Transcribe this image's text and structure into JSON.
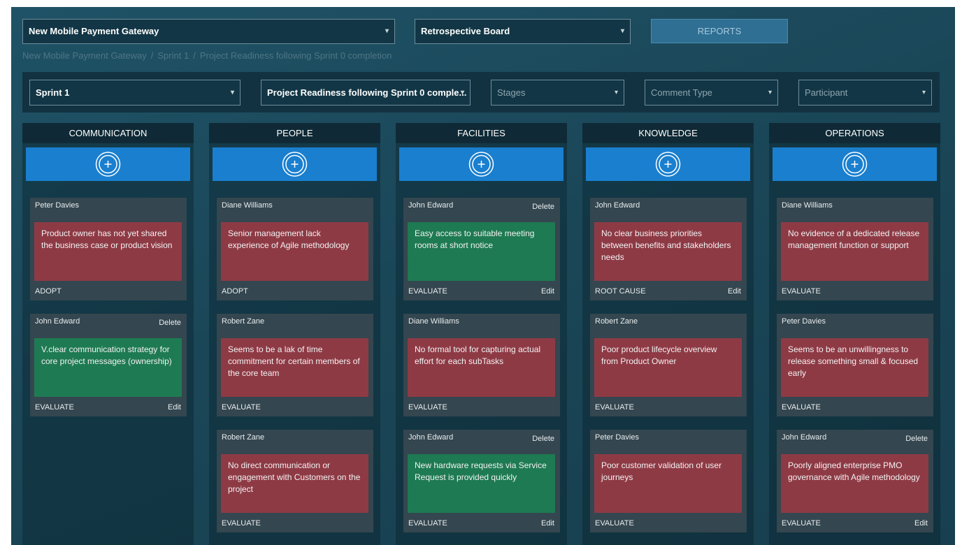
{
  "header": {
    "project_select": "New Mobile Payment Gateway",
    "board_select": "Retrospective Board",
    "reports_button": "REPORTS"
  },
  "breadcrumb": {
    "items": [
      "New Mobile Payment Gateway",
      "Sprint 1",
      "Project Readiness following Sprint 0 completion"
    ],
    "separator": "/"
  },
  "filters": [
    "Sprint 1",
    "Project Readiness following Sprint 0 comple...",
    "Stages",
    "Comment Type",
    "Participant"
  ],
  "columns": [
    {
      "title": "COMMUNICATION",
      "cards": [
        {
          "author": "Peter Davies",
          "text": "Product owner has not yet shared the business case or product vision",
          "type": "ADOPT",
          "color": "#8e3a45"
        },
        {
          "author": "John Edward",
          "delete": "Delete",
          "text": "V.clear communication strategy for core project messages (ownership)",
          "type": "EVALUATE",
          "edit": "Edit",
          "color": "#1e7a52"
        }
      ]
    },
    {
      "title": "PEOPLE",
      "cards": [
        {
          "author": "Diane Williams",
          "text": "Senior management lack experience of Agile methodology",
          "type": "ADOPT",
          "color": "#8e3a45"
        },
        {
          "author": "Robert Zane",
          "text": "Seems to be a lak of time commitment for certain members of the core team",
          "type": "EVALUATE",
          "color": "#8e3a45"
        },
        {
          "author": "Robert Zane",
          "text": "No direct communication or engagement with Customers on the project",
          "type": "EVALUATE",
          "color": "#8e3a45"
        }
      ]
    },
    {
      "title": "FACILITIES",
      "cards": [
        {
          "author": "John Edward",
          "delete": "Delete",
          "text": "Easy access to suitable meeting rooms at short notice",
          "type": "EVALUATE",
          "edit": "Edit",
          "color": "#1e7a52"
        },
        {
          "author": "Diane Williams",
          "text": "No formal tool for capturing actual effort for each subTasks",
          "type": "EVALUATE",
          "color": "#8e3a45"
        },
        {
          "author": "John Edward",
          "delete": "Delete",
          "text": "New hardware requests via Service Request is provided quickly",
          "type": "EVALUATE",
          "edit": "Edit",
          "color": "#1e7a52"
        }
      ]
    },
    {
      "title": "KNOWLEDGE",
      "cards": [
        {
          "author": "John Edward",
          "text": "No clear business priorities between benefits and stakeholders needs",
          "type": "ROOT CAUSE",
          "edit": "Edit",
          "color": "#8e3a45"
        },
        {
          "author": "Robert Zane",
          "text": "Poor product lifecycle overview from Product Owner",
          "type": "EVALUATE",
          "color": "#8e3a45"
        },
        {
          "author": "Peter Davies",
          "text": "Poor customer validation of user journeys",
          "type": "EVALUATE",
          "color": "#8e3a45"
        }
      ]
    },
    {
      "title": "OPERATIONS",
      "cards": [
        {
          "author": "Diane Williams",
          "text": "No evidence of a dedicated release management function or support",
          "type": "EVALUATE",
          "color": "#8e3a45"
        },
        {
          "author": "Peter Davies",
          "text": "Seems to be an unwillingness to release something small & focused early",
          "type": "EVALUATE",
          "color": "#8e3a45"
        },
        {
          "author": "John Edward",
          "delete": "Delete",
          "text": "Poorly aligned enterprise PMO governance with Agile methodology",
          "type": "EVALUATE",
          "edit": "Edit",
          "color": "#8e3a45"
        }
      ]
    }
  ]
}
